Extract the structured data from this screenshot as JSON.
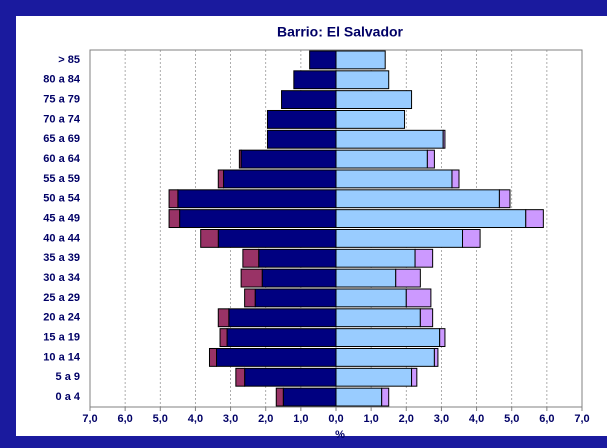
{
  "chart_data": {
    "type": "pyramid",
    "title": "Barrio: El Salvador",
    "x_label": "%",
    "categories": [
      "0 a 4",
      "5 a 9",
      "10 a 14",
      "15 a 19",
      "20 a 24",
      "25 a 29",
      "30 a 34",
      "35 a 39",
      "40 a 44",
      "45 a 49",
      "50 a 54",
      "55 a 59",
      "60 a 64",
      "65 a 69",
      "70 a 74",
      "75 a 79",
      "80 a 84",
      "> 85"
    ],
    "series": [
      {
        "color": "#000080",
        "values": [
          -1.5,
          -2.6,
          -3.4,
          -3.1,
          -3.05,
          -2.3,
          -2.1,
          -2.2,
          -3.35,
          -4.45,
          -4.5,
          -3.2,
          -2.7,
          -1.95,
          -1.95,
          -1.55,
          -1.2,
          -0.75
        ]
      },
      {
        "color": "#993366",
        "values": [
          -0.2,
          -0.25,
          -0.2,
          -0.2,
          -0.3,
          -0.3,
          -0.6,
          -0.45,
          -0.5,
          -0.3,
          -0.25,
          -0.15,
          -0.05,
          0,
          0,
          0,
          0,
          0
        ]
      },
      {
        "color": "#99ccff",
        "values": [
          1.3,
          2.15,
          2.8,
          2.95,
          2.4,
          2.0,
          1.7,
          2.25,
          3.6,
          5.4,
          4.65,
          3.3,
          2.6,
          3.05,
          1.95,
          2.15,
          1.5,
          1.4
        ]
      },
      {
        "color": "#cc99ff",
        "values": [
          0.2,
          0.15,
          0.1,
          0.15,
          0.35,
          0.7,
          0.7,
          0.5,
          0.5,
          0.5,
          0.3,
          0.2,
          0.2,
          0.05,
          0,
          0,
          0,
          0
        ]
      }
    ],
    "xlim": [
      -7,
      7
    ],
    "xticks": [
      {
        "value": -7,
        "label": "7,0"
      },
      {
        "value": -6,
        "label": "6,0"
      },
      {
        "value": -5,
        "label": "5,0"
      },
      {
        "value": -4,
        "label": "4,0"
      },
      {
        "value": -3,
        "label": "3,0"
      },
      {
        "value": -2,
        "label": "2,0"
      },
      {
        "value": -1,
        "label": "1,0"
      },
      {
        "value": 0,
        "label": "0,0"
      },
      {
        "value": 1,
        "label": "1,0"
      },
      {
        "value": 2,
        "label": "2,0"
      },
      {
        "value": 3,
        "label": "3,0"
      },
      {
        "value": 4,
        "label": "4,0"
      },
      {
        "value": 5,
        "label": "5,0"
      },
      {
        "value": 6,
        "label": "6,0"
      },
      {
        "value": 7,
        "label": "7,0"
      }
    ],
    "grid": true
  }
}
